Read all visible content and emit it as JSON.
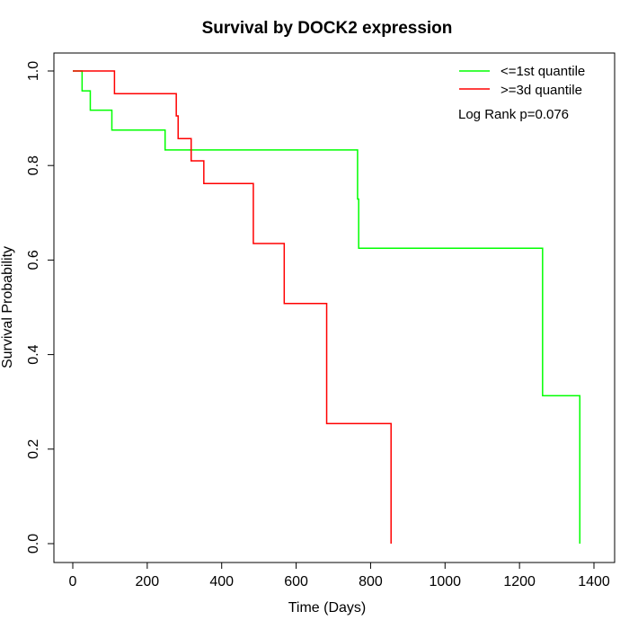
{
  "chart_data": {
    "type": "line",
    "title": "Survival by DOCK2 expression",
    "xlabel": "Time (Days)",
    "ylabel": "Survival Probability",
    "xlim": [
      0,
      1400
    ],
    "ylim": [
      0,
      1
    ],
    "x_ticks": [
      "0",
      "200",
      "400",
      "600",
      "800",
      "1000",
      "1200",
      "1400"
    ],
    "y_ticks": [
      "0.0",
      "0.2",
      "0.4",
      "0.6",
      "0.8",
      "1.0"
    ],
    "grid": false,
    "legend_position": "top-right",
    "annotation": "Log Rank p=0.076",
    "series": [
      {
        "name": "<=1st quantile",
        "color": "#00ff00",
        "steps": [
          {
            "x": 0,
            "y": 1.0
          },
          {
            "x": 25,
            "y": 0.958
          },
          {
            "x": 47,
            "y": 0.917
          },
          {
            "x": 105,
            "y": 0.875
          },
          {
            "x": 248,
            "y": 0.833
          },
          {
            "x": 765,
            "y": 0.729
          },
          {
            "x": 768,
            "y": 0.625
          },
          {
            "x": 1262,
            "y": 0.313
          },
          {
            "x": 1362,
            "y": 0.0
          }
        ]
      },
      {
        "name": ">=3d quantile",
        "color": "#ff0000",
        "steps": [
          {
            "x": 0,
            "y": 1.0
          },
          {
            "x": 112,
            "y": 0.952
          },
          {
            "x": 278,
            "y": 0.905
          },
          {
            "x": 283,
            "y": 0.857
          },
          {
            "x": 318,
            "y": 0.81
          },
          {
            "x": 352,
            "y": 0.762
          },
          {
            "x": 485,
            "y": 0.635
          },
          {
            "x": 568,
            "y": 0.508
          },
          {
            "x": 682,
            "y": 0.254
          },
          {
            "x": 855,
            "y": 0.0
          }
        ]
      }
    ]
  }
}
